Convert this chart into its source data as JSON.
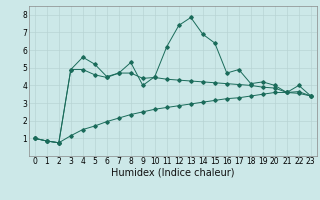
{
  "x_values": [
    0,
    1,
    2,
    3,
    4,
    5,
    6,
    7,
    8,
    9,
    10,
    11,
    12,
    13,
    14,
    15,
    16,
    17,
    18,
    19,
    20,
    21,
    22,
    23
  ],
  "line1": [
    1.0,
    0.85,
    0.75,
    4.9,
    5.6,
    5.2,
    4.5,
    4.7,
    5.3,
    4.0,
    4.5,
    6.2,
    7.4,
    7.85,
    6.9,
    6.4,
    4.7,
    4.9,
    4.1,
    4.2,
    4.0,
    3.6,
    4.0,
    3.4
  ],
  "line2": [
    1.0,
    0.85,
    0.75,
    4.9,
    4.9,
    4.6,
    4.45,
    4.7,
    4.7,
    4.4,
    4.45,
    4.35,
    4.3,
    4.25,
    4.2,
    4.15,
    4.1,
    4.05,
    4.0,
    3.9,
    3.85,
    3.6,
    3.55,
    3.4
  ],
  "line3": [
    1.0,
    0.85,
    0.75,
    1.15,
    1.5,
    1.7,
    1.95,
    2.15,
    2.35,
    2.5,
    2.65,
    2.75,
    2.85,
    2.95,
    3.05,
    3.15,
    3.25,
    3.3,
    3.4,
    3.5,
    3.6,
    3.6,
    3.65,
    3.4
  ],
  "xlabel": "Humidex (Indice chaleur)",
  "ylim": [
    0,
    8.5
  ],
  "xlim": [
    -0.5,
    23.5
  ],
  "bg_color": "#cce8e8",
  "line_color": "#1a6b5a",
  "grid_color": "#b8d4d4",
  "tick_label_size": 5.5,
  "xlabel_size": 7.0
}
